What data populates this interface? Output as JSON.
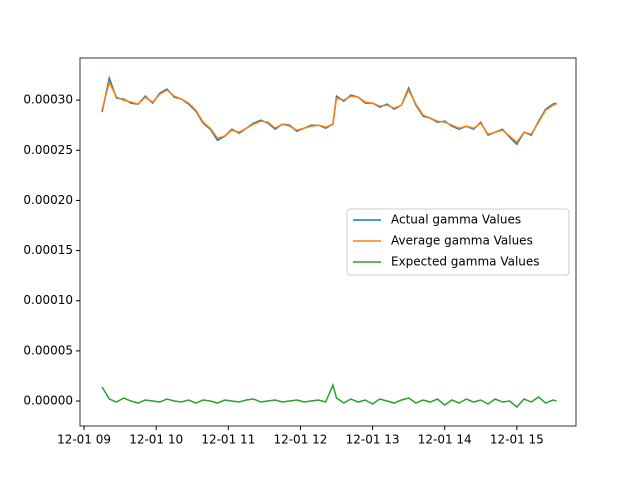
{
  "chart_data": {
    "type": "line",
    "x": [
      9.25,
      9.35,
      9.45,
      9.55,
      9.65,
      9.75,
      9.85,
      9.95,
      10.05,
      10.15,
      10.25,
      10.35,
      10.45,
      10.55,
      10.65,
      10.75,
      10.85,
      10.95,
      11.05,
      11.15,
      11.25,
      11.35,
      11.45,
      11.55,
      11.65,
      11.75,
      11.85,
      11.95,
      12.05,
      12.15,
      12.25,
      12.35,
      12.45,
      12.5,
      12.6,
      12.7,
      12.8,
      12.9,
      13.0,
      13.1,
      13.2,
      13.3,
      13.4,
      13.5,
      13.6,
      13.7,
      13.8,
      13.9,
      14.0,
      14.1,
      14.2,
      14.3,
      14.4,
      14.5,
      14.6,
      14.7,
      14.8,
      14.9,
      15.0,
      15.1,
      15.2,
      15.3,
      15.4,
      15.5,
      15.55
    ],
    "series": [
      {
        "name": "Actual gamma Values",
        "color": "#1f77b4",
        "values": [
          0.000288,
          0.000322,
          0.000302,
          0.000301,
          0.000297,
          0.000296,
          0.000304,
          0.000297,
          0.000307,
          0.000311,
          0.000303,
          0.000301,
          0.000296,
          0.000289,
          0.000277,
          0.000271,
          0.00026,
          0.000264,
          0.000271,
          0.000267,
          0.000272,
          0.000277,
          0.00028,
          0.000277,
          0.000271,
          0.000276,
          0.000275,
          0.000269,
          0.000272,
          0.000275,
          0.000275,
          0.000272,
          0.000276,
          0.000304,
          0.000299,
          0.000305,
          0.000303,
          0.000297,
          0.000297,
          0.000293,
          0.000296,
          0.000291,
          0.000295,
          0.000312,
          0.000295,
          0.000284,
          0.000282,
          0.000278,
          0.000279,
          0.000274,
          0.000271,
          0.000274,
          0.000271,
          0.000278,
          0.000265,
          0.000268,
          0.000271,
          0.000263,
          0.000256,
          0.000268,
          0.000265,
          0.000279,
          0.000291,
          0.000296,
          0.000297
        ]
      },
      {
        "name": "Average gamma Values",
        "color": "#ff7f0e",
        "values": [
          0.00029,
          0.000318,
          0.000303,
          0.0003,
          0.000298,
          0.000296,
          0.000303,
          0.000298,
          0.000306,
          0.00031,
          0.000304,
          0.000301,
          0.000297,
          0.00029,
          0.000278,
          0.000272,
          0.000262,
          0.000264,
          0.00027,
          0.000268,
          0.000272,
          0.000276,
          0.000279,
          0.000278,
          0.000272,
          0.000276,
          0.000274,
          0.00027,
          0.000272,
          0.000274,
          0.000275,
          0.000273,
          0.000276,
          0.000302,
          0.0003,
          0.000304,
          0.000303,
          0.000298,
          0.000297,
          0.000294,
          0.000295,
          0.000292,
          0.000295,
          0.00031,
          0.000296,
          0.000285,
          0.000282,
          0.000279,
          0.000278,
          0.000275,
          0.000272,
          0.000274,
          0.000272,
          0.000277,
          0.000266,
          0.000268,
          0.00027,
          0.000264,
          0.000258,
          0.000268,
          0.000266,
          0.000278,
          0.00029,
          0.000295,
          0.000296
        ]
      },
      {
        "name": "Expected gamma Values",
        "color": "#2ca02c",
        "values": [
          1.4e-05,
          2e-06,
          -1e-06,
          3e-06,
          0.0,
          -2e-06,
          1e-06,
          0.0,
          -1e-06,
          2e-06,
          0.0,
          -1e-06,
          1e-06,
          -2e-06,
          1e-06,
          0.0,
          -2e-06,
          1e-06,
          0.0,
          -1e-06,
          1e-06,
          2e-06,
          -1e-06,
          0.0,
          1e-06,
          -1e-06,
          0.0,
          1e-06,
          -1e-06,
          0.0,
          1e-06,
          -1e-06,
          1.6e-05,
          3e-06,
          -2e-06,
          2e-06,
          -1e-06,
          1e-06,
          -3e-06,
          2e-06,
          0.0,
          -2e-06,
          1e-06,
          3e-06,
          -2e-06,
          1e-06,
          -1e-06,
          2e-06,
          -4e-06,
          1e-06,
          -2e-06,
          2e-06,
          -1e-06,
          1e-06,
          -3e-06,
          2e-06,
          -1e-06,
          0.0,
          -6e-06,
          2e-06,
          -1e-06,
          4e-06,
          -2e-06,
          1e-06,
          0.0
        ]
      }
    ],
    "xlim": [
      8.944,
      15.82
    ],
    "xticks": [
      {
        "value": 9,
        "label": "12-01 09"
      },
      {
        "value": 10,
        "label": "12-01 10"
      },
      {
        "value": 11,
        "label": "12-01 11"
      },
      {
        "value": 12,
        "label": "12-01 12"
      },
      {
        "value": 13,
        "label": "12-01 13"
      },
      {
        "value": 14,
        "label": "12-01 14"
      },
      {
        "value": 15,
        "label": "12-01 15"
      }
    ],
    "ylim": [
      -2.49e-05,
      0.000342
    ],
    "yticks": [
      {
        "value": 0,
        "label": "0.00000"
      },
      {
        "value": 5e-05,
        "label": "0.00005"
      },
      {
        "value": 0.0001,
        "label": "0.00010"
      },
      {
        "value": 0.00015,
        "label": "0.00015"
      },
      {
        "value": 0.0002,
        "label": "0.00020"
      },
      {
        "value": 0.00025,
        "label": "0.00025"
      },
      {
        "value": 0.0003,
        "label": "0.00030"
      }
    ],
    "legend": "center right",
    "grid": false
  }
}
